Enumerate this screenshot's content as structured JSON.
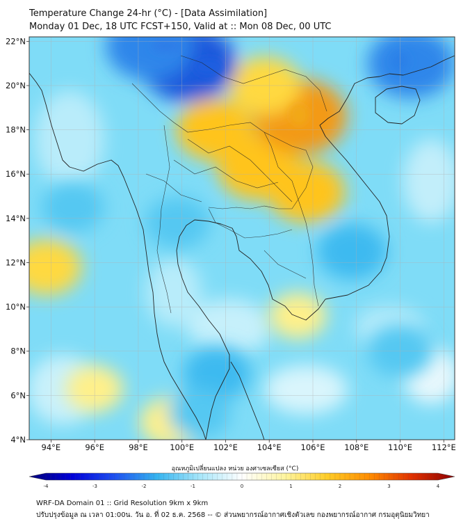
{
  "title": {
    "line1": "Temperature Change 24-hr (°C) - [Data Assimilation]",
    "line2": "Monday 01 Dec, 18 UTC FCST+150, Valid at :: Mon 08 Dec, 00 UTC"
  },
  "map": {
    "lon_range": [
      93,
      112.5
    ],
    "lat_range": [
      4,
      22.2
    ],
    "lon_ticks": [
      94,
      96,
      98,
      100,
      102,
      104,
      106,
      108,
      110,
      112
    ],
    "lat_ticks": [
      4,
      6,
      8,
      10,
      12,
      14,
      16,
      18,
      20,
      22
    ],
    "lon_labels": [
      "94°E",
      "96°E",
      "98°E",
      "100°E",
      "102°E",
      "104°E",
      "106°E",
      "108°E",
      "110°E",
      "112°E"
    ],
    "lat_labels": [
      "4°N",
      "6°N",
      "8°N",
      "10°N",
      "12°N",
      "14°N",
      "16°N",
      "18°N",
      "20°N",
      "22°N"
    ],
    "field_anomalies": [
      {
        "name": "warm-northern-thailand-laos",
        "lon": 101.5,
        "lat": 18.0,
        "value": 1.6
      },
      {
        "name": "warm-northeast-thailand",
        "lon": 103.5,
        "lat": 16.3,
        "value": 1.8
      },
      {
        "name": "warm-laos-peak",
        "lon": 105.4,
        "lat": 18.6,
        "value": 2.3
      },
      {
        "name": "warm-north-laos",
        "lon": 103.8,
        "lat": 20.0,
        "value": 1.4
      },
      {
        "name": "warm-southern-laos",
        "lon": 105.7,
        "lat": 15.2,
        "value": 1.6
      },
      {
        "name": "warm-andaman-sea",
        "lon": 93.8,
        "lat": 11.8,
        "value": 1.3
      },
      {
        "name": "warm-gulf-south",
        "lon": 99.5,
        "lat": 4.8,
        "value": 1.0
      },
      {
        "name": "warm-south-vietnam-coast",
        "lon": 105.3,
        "lat": 9.6,
        "value": 0.8
      },
      {
        "name": "warm-malacca",
        "lon": 96.0,
        "lat": 6.3,
        "value": 0.8
      },
      {
        "name": "cold-upper-myanmar",
        "lon": 100.3,
        "lat": 21.0,
        "value": -2.4
      },
      {
        "name": "cold-north-myanmar",
        "lon": 98.5,
        "lat": 21.8,
        "value": -2.0
      },
      {
        "name": "cold-gulf-of-tonkin",
        "lon": 110.5,
        "lat": 21.0,
        "value": -2.0
      },
      {
        "name": "cold-south-vietnam",
        "lon": 107.8,
        "lat": 12.5,
        "value": -1.3
      },
      {
        "name": "cold-gulf-of-thailand",
        "lon": 101.6,
        "lat": 7.0,
        "value": -1.2
      },
      {
        "name": "cold-central-thailand",
        "lon": 99.8,
        "lat": 13.8,
        "value": -1.1
      },
      {
        "name": "cold-andaman-west",
        "lon": 95.0,
        "lat": 14.5,
        "value": -1.0
      },
      {
        "name": "cold-south-china-sea",
        "lon": 110.0,
        "lat": 8.0,
        "value": -1.1
      },
      {
        "name": "cold-malaysia-peninsula",
        "lon": 100.8,
        "lat": 5.2,
        "value": -1.0
      }
    ]
  },
  "colorbar": {
    "label": "อุณหภูมิเปลี่ยนแปลง หน่วย องศาเซลเซียส (°C)",
    "min": -4,
    "max": 4,
    "ticks": [
      -4,
      -3,
      -2,
      -1,
      0,
      1,
      2,
      3,
      4
    ],
    "tick_labels": [
      "-4",
      "-3",
      "-2",
      "-1",
      "0",
      "1",
      "2",
      "3",
      "4"
    ],
    "colors": [
      "#00007a",
      "#0000d8",
      "#1e50f0",
      "#35b4f0",
      "#a6e6fa",
      "#ffffff",
      "#fff5a0",
      "#ffcd28",
      "#ff8c00",
      "#e03000",
      "#8c0000"
    ]
  },
  "footer": {
    "line1": "WRF-DA Domain 01 :: Grid Resolution 9km x 9km",
    "line2": "ปรับปรุงข้อมูล ณ เวลา 01:00น. วัน อ. ที่ 02 ธ.ค. 2568 -- © ส่วนพยากรณ์อากาศเชิงตัวเลข กองพยากรณ์อากาศ กรมอุตุนิยมวิทยา"
  }
}
